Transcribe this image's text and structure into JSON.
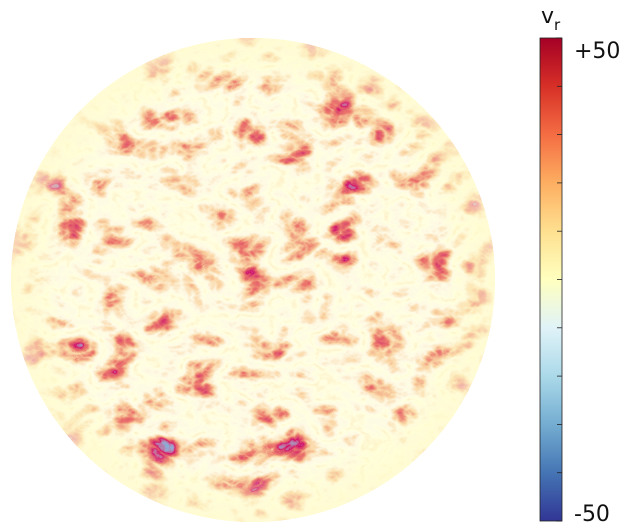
{
  "chart_data": {
    "type": "colorbar",
    "colorbar_label": {
      "text": "v",
      "subscript": "r"
    },
    "clim": [
      -50,
      50
    ],
    "ticks": [
      {
        "value": 50,
        "label": "+50"
      },
      -50
    ],
    "minor_ticks": [
      -40,
      -30,
      -20,
      -10,
      0,
      10,
      20,
      30,
      40
    ],
    "colors": [
      "#313695",
      "#4575b4",
      "#74add1",
      "#abd9e9",
      "#e0f3f8",
      "#ffffbf",
      "#fee090",
      "#fdae61",
      "#f46d43",
      "#d73027",
      "#a50026"
    ]
  }
}
